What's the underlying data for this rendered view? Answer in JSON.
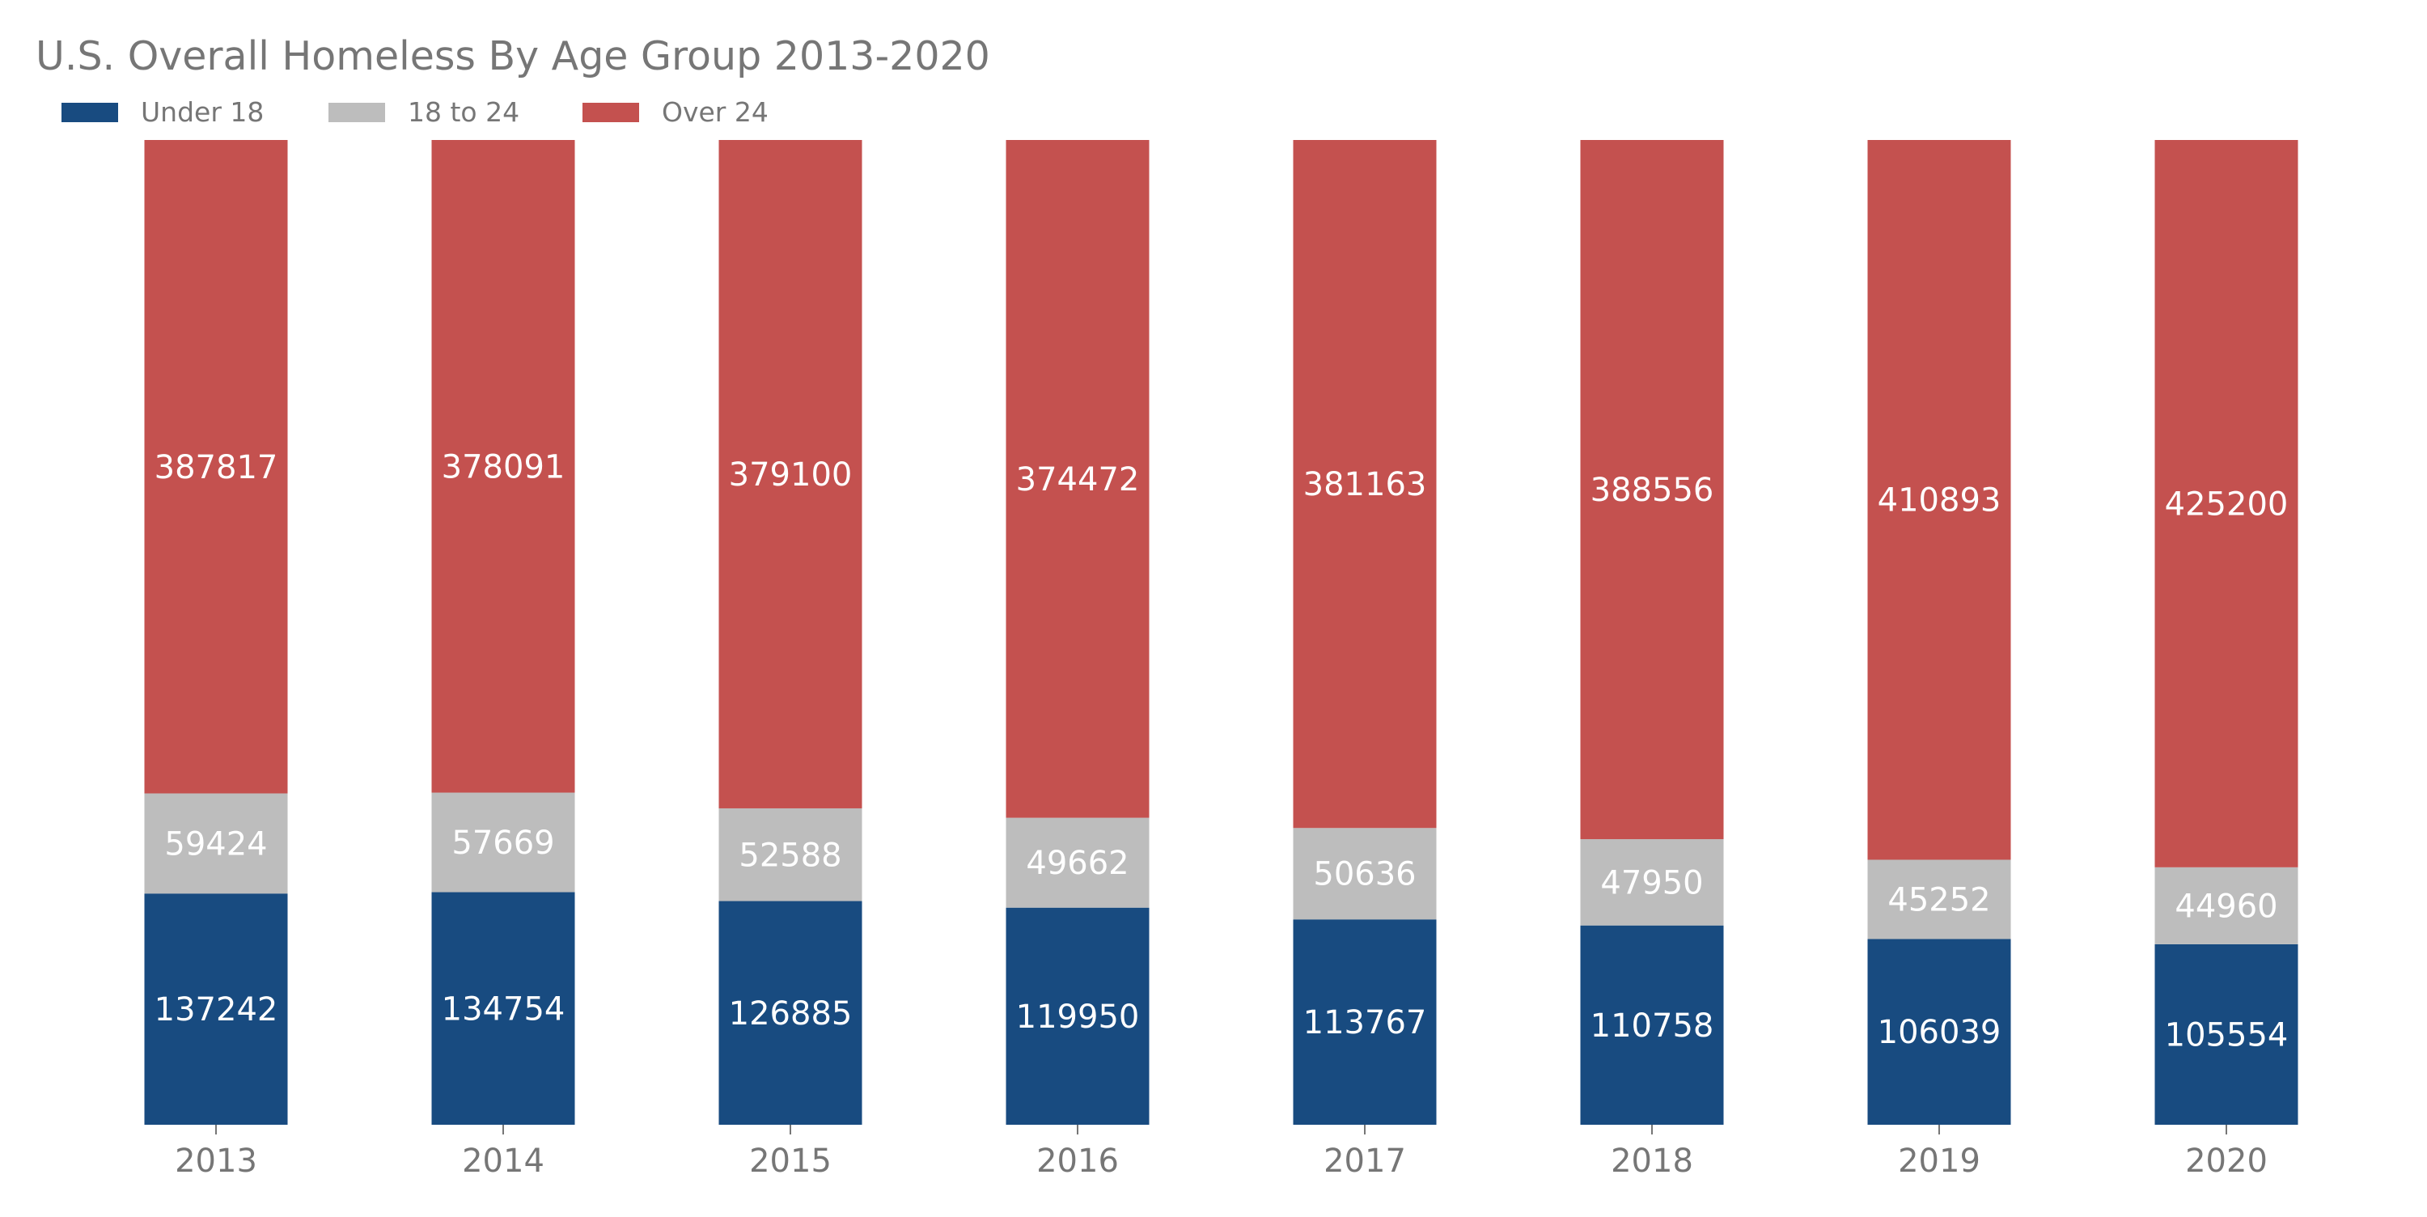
{
  "chart_data": {
    "type": "bar",
    "stacked": true,
    "normalized": true,
    "title": "U.S. Overall Homeless By Age Group 2013-2020",
    "xlabel": "",
    "ylabel": "",
    "grid": false,
    "legend_position": "top-left",
    "categories": [
      "2013",
      "2014",
      "2015",
      "2016",
      "2017",
      "2018",
      "2019",
      "2020"
    ],
    "series": [
      {
        "name": "Under 18",
        "color": "#184b80",
        "values": [
          137242,
          134754,
          126885,
          119950,
          113767,
          110758,
          106039,
          105554
        ]
      },
      {
        "name": "18 to 24",
        "color": "#bdbdbd",
        "values": [
          59424,
          57669,
          52588,
          49662,
          50636,
          47950,
          45252,
          44960
        ]
      },
      {
        "name": "Over 24",
        "color": "#c4514f",
        "values": [
          387817,
          378091,
          379100,
          374472,
          381163,
          388556,
          410893,
          425200
        ]
      }
    ]
  }
}
